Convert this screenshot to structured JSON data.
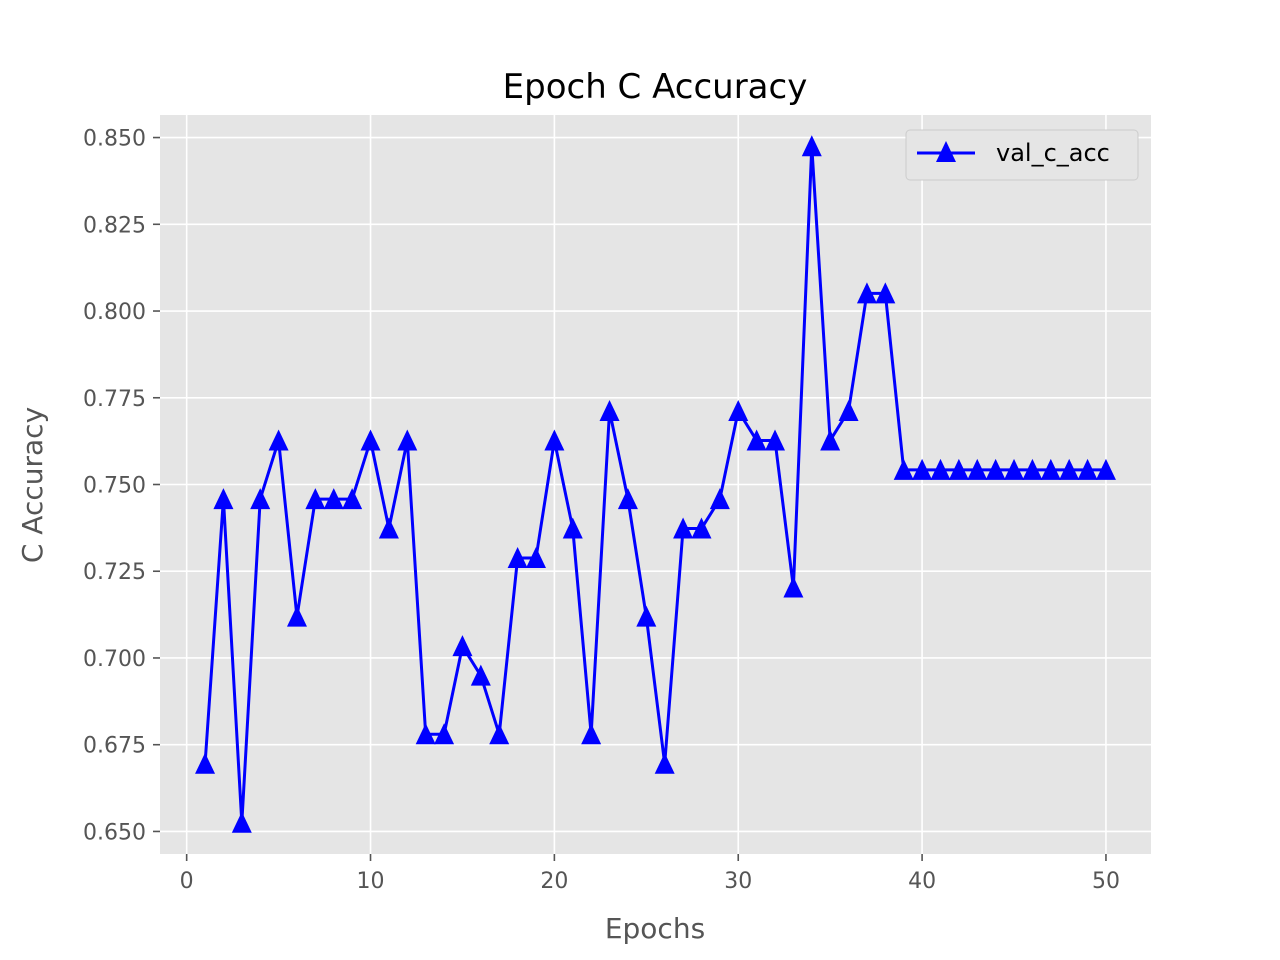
{
  "chart_data": {
    "type": "line",
    "title": "Epoch C Accuracy",
    "xlabel": "Epochs",
    "ylabel": "C Accuracy",
    "xlim": [
      -1.45,
      52.45
    ],
    "ylim": [
      0.6435,
      0.8565
    ],
    "xticks": [
      0,
      10,
      20,
      30,
      40,
      50
    ],
    "xtick_labels": [
      "0",
      "10",
      "20",
      "30",
      "40",
      "50"
    ],
    "yticks": [
      0.65,
      0.675,
      0.7,
      0.725,
      0.75,
      0.775,
      0.8,
      0.825,
      0.85
    ],
    "ytick_labels": [
      "0.650",
      "0.675",
      "0.700",
      "0.725",
      "0.750",
      "0.775",
      "0.800",
      "0.825",
      "0.850"
    ],
    "grid": true,
    "legend_position": "top-right",
    "series": [
      {
        "name": "val_c_acc",
        "color": "#0000ff",
        "marker": "triangle-up",
        "x": [
          1,
          2,
          3,
          4,
          5,
          6,
          7,
          8,
          9,
          10,
          11,
          12,
          13,
          14,
          15,
          16,
          17,
          18,
          19,
          20,
          21,
          22,
          23,
          24,
          25,
          26,
          27,
          28,
          29,
          30,
          31,
          32,
          33,
          34,
          35,
          36,
          37,
          38,
          39,
          40,
          41,
          42,
          43,
          44,
          45,
          46,
          47,
          48,
          49,
          50
        ],
        "y": [
          0.6695,
          0.7458,
          0.6525,
          0.7458,
          0.7627,
          0.7119,
          0.7458,
          0.7458,
          0.7458,
          0.7627,
          0.7373,
          0.7627,
          0.678,
          0.678,
          0.7034,
          0.6949,
          0.678,
          0.7288,
          0.7288,
          0.7627,
          0.7373,
          0.678,
          0.7712,
          0.7458,
          0.7119,
          0.6695,
          0.7373,
          0.7373,
          0.7458,
          0.7712,
          0.7627,
          0.7627,
          0.7203,
          0.8475,
          0.7627,
          0.7712,
          0.8051,
          0.8051,
          0.7542,
          0.7542,
          0.7542,
          0.7542,
          0.7542,
          0.7542,
          0.7542,
          0.7542,
          0.7542,
          0.7542,
          0.7542,
          0.7542
        ]
      }
    ]
  },
  "colors": {
    "plot_background": "#e5e5e5",
    "grid": "#ffffff",
    "tick": "#555555"
  }
}
